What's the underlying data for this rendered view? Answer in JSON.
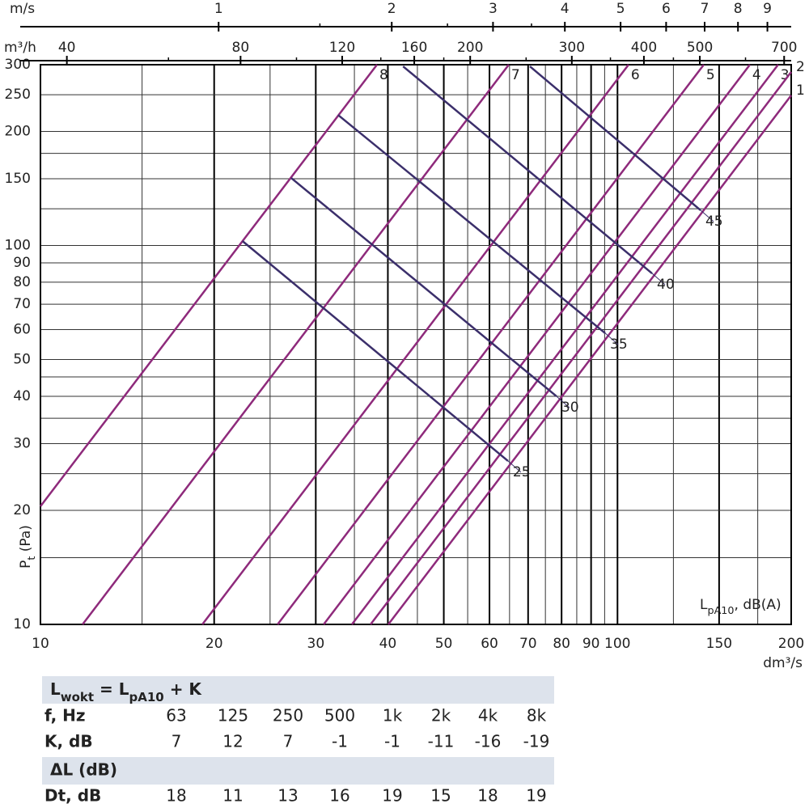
{
  "chart_data": {
    "type": "line",
    "log_x": true,
    "log_y": true,
    "xlim": [
      10,
      200
    ],
    "ylim": [
      10,
      300
    ],
    "xticks": [
      10,
      20,
      30,
      40,
      50,
      60,
      70,
      80,
      90,
      100,
      150,
      200
    ],
    "x_minor_grid": [
      15,
      25,
      35,
      45,
      55,
      65,
      75,
      85,
      95,
      125,
      175
    ],
    "yticks": [
      10,
      20,
      30,
      40,
      50,
      60,
      70,
      80,
      90,
      100,
      150,
      200,
      250,
      300
    ],
    "y_minor_grid": [
      15,
      25,
      35,
      45,
      125,
      175
    ],
    "x_label": "dm³/s",
    "y_label": [
      "P",
      "t",
      " (Pa)"
    ],
    "annotation": [
      "L",
      "pA10",
      ", dB(A)"
    ],
    "top_axes": [
      {
        "label": "m/s",
        "xlim": [
          0.49,
          9.9
        ],
        "ticks": [
          1,
          2,
          3,
          4,
          5,
          6,
          7,
          8,
          9
        ],
        "minor_ticks": [
          1.5,
          2.5,
          3.5
        ]
      },
      {
        "label": "m³/h",
        "xlim": [
          36,
          720
        ],
        "ticks": [
          40,
          80,
          120,
          160,
          200,
          300,
          400,
          500,
          700
        ],
        "minor_ticks": [
          60,
          100,
          140,
          180,
          250,
          350,
          450,
          600
        ]
      }
    ],
    "series": [
      {
        "name": "8",
        "color": "#8e2a7b",
        "x": [
          10,
          38.3
        ],
        "values": [
          20.5,
          300
        ]
      },
      {
        "name": "7",
        "color": "#8e2a7b",
        "x": [
          11.83,
          64.8
        ],
        "values": [
          10,
          300
        ]
      },
      {
        "name": "6",
        "color": "#8e2a7b",
        "x": [
          19.08,
          104.5
        ],
        "values": [
          10,
          300
        ]
      },
      {
        "name": "5",
        "color": "#8e2a7b",
        "x": [
          25.76,
          141.1
        ],
        "values": [
          10,
          300
        ]
      },
      {
        "name": "4",
        "color": "#8e2a7b",
        "x": [
          30.96,
          169.6
        ],
        "values": [
          10,
          300
        ]
      },
      {
        "name": "3",
        "color": "#8e2a7b",
        "x": [
          34.65,
          189.8
        ],
        "values": [
          10,
          300
        ]
      },
      {
        "name": "2",
        "color": "#8e2a7b",
        "x": [
          37.33,
          200
        ],
        "values": [
          10,
          287
        ]
      },
      {
        "name": "1",
        "color": "#8e2a7b",
        "x": [
          40.07,
          200
        ],
        "values": [
          10,
          249
        ]
      },
      {
        "name": "25",
        "color": "#3b2f6b",
        "x": [
          22.4,
          64.6
        ],
        "values": [
          102.7,
          27.0
        ]
      },
      {
        "name": "30",
        "color": "#3b2f6b",
        "x": [
          27.2,
          78.4
        ],
        "values": [
          150.7,
          40.0
        ]
      },
      {
        "name": "35",
        "color": "#3b2f6b",
        "x": [
          32.8,
          95.2
        ],
        "values": [
          221,
          58.7
        ]
      },
      {
        "name": "40",
        "color": "#3b2f6b",
        "x": [
          42.5,
          114.8
        ],
        "values": [
          297,
          84.4
        ]
      },
      {
        "name": "45",
        "color": "#3b2f6b",
        "x": [
          70.5,
          139.3
        ],
        "values": [
          297,
          123.9
        ]
      }
    ]
  },
  "table": {
    "title": [
      "L",
      "wokt",
      " = L",
      "pA10",
      " + K"
    ],
    "rows": [
      {
        "label": "f, Hz",
        "cells": [
          "63",
          "125",
          "250",
          "500",
          "1k",
          "2k",
          "4k",
          "8k"
        ]
      },
      {
        "label": "K, dB",
        "cells": [
          7,
          12,
          7,
          -1,
          -1,
          -11,
          -16,
          -19
        ]
      }
    ],
    "section": "ΔL (dB)",
    "rows2": [
      {
        "label": "Dt, dB",
        "cells": [
          18,
          11,
          13,
          16,
          19,
          15,
          18,
          19
        ]
      }
    ]
  }
}
